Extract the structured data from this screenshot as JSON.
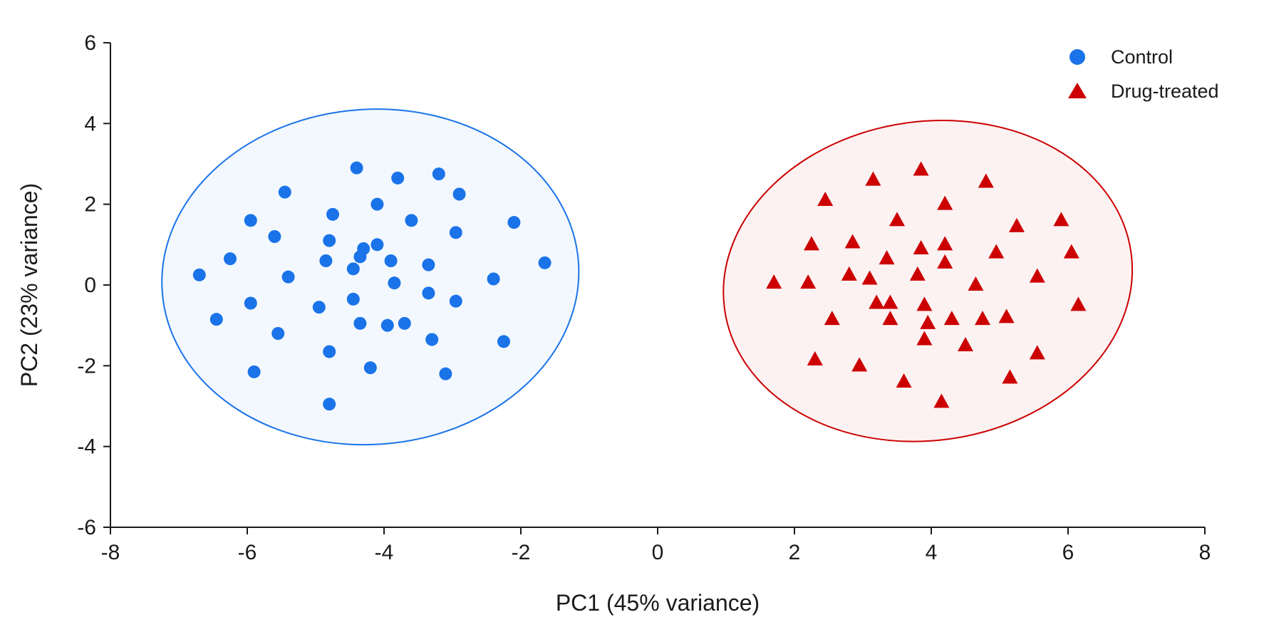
{
  "chart_data": {
    "type": "scatter",
    "xlabel": "PC1 (45% variance)",
    "ylabel": "PC2 (23% variance)",
    "xlim": [
      -8,
      8
    ],
    "ylim": [
      -6,
      6
    ],
    "xticks": [
      -8,
      -6,
      -4,
      -2,
      0,
      2,
      4,
      6,
      8
    ],
    "yticks": [
      -6,
      -4,
      -2,
      0,
      2,
      4,
      6
    ],
    "grid": false,
    "legend_position": "top-right",
    "series": [
      {
        "name": "Control",
        "marker": "circle",
        "color": "#1a73e8",
        "ellipse": {
          "cx": -4.2,
          "cy": 0.2,
          "rx": 3.05,
          "ry": 4.15,
          "tilt_deg": -4
        },
        "points": [
          [
            -4.4,
            2.9
          ],
          [
            -3.8,
            2.65
          ],
          [
            -3.2,
            2.75
          ],
          [
            -5.45,
            2.3
          ],
          [
            -2.9,
            2.25
          ],
          [
            -4.1,
            2.0
          ],
          [
            -4.75,
            1.75
          ],
          [
            -3.6,
            1.6
          ],
          [
            -5.95,
            1.6
          ],
          [
            -2.1,
            1.55
          ],
          [
            -2.95,
            1.3
          ],
          [
            -5.6,
            1.2
          ],
          [
            -4.8,
            1.1
          ],
          [
            -4.1,
            1.0
          ],
          [
            -4.3,
            0.9
          ],
          [
            -4.35,
            0.7
          ],
          [
            -6.25,
            0.65
          ],
          [
            -4.85,
            0.6
          ],
          [
            -3.9,
            0.6
          ],
          [
            -3.35,
            0.5
          ],
          [
            -1.65,
            0.55
          ],
          [
            -4.45,
            0.4
          ],
          [
            -6.7,
            0.25
          ],
          [
            -5.4,
            0.2
          ],
          [
            -2.4,
            0.15
          ],
          [
            -3.85,
            0.05
          ],
          [
            -3.35,
            -0.2
          ],
          [
            -4.45,
            -0.35
          ],
          [
            -2.95,
            -0.4
          ],
          [
            -5.95,
            -0.45
          ],
          [
            -4.95,
            -0.55
          ],
          [
            -6.45,
            -0.85
          ],
          [
            -3.7,
            -0.95
          ],
          [
            -4.35,
            -0.95
          ],
          [
            -3.95,
            -1.0
          ],
          [
            -5.55,
            -1.2
          ],
          [
            -3.3,
            -1.35
          ],
          [
            -2.25,
            -1.4
          ],
          [
            -4.8,
            -1.65
          ],
          [
            -4.2,
            -2.05
          ],
          [
            -5.9,
            -2.15
          ],
          [
            -3.1,
            -2.2
          ],
          [
            -4.8,
            -2.95
          ]
        ]
      },
      {
        "name": "Drug-treated",
        "marker": "triangle",
        "color": "#cc0000",
        "ellipse": {
          "cx": 3.95,
          "cy": 0.1,
          "rx": 3.0,
          "ry": 3.95,
          "tilt_deg": -8
        },
        "points": [
          [
            3.85,
            2.85
          ],
          [
            3.15,
            2.6
          ],
          [
            4.8,
            2.55
          ],
          [
            2.45,
            2.1
          ],
          [
            4.2,
            2.0
          ],
          [
            3.5,
            1.6
          ],
          [
            5.9,
            1.6
          ],
          [
            5.25,
            1.45
          ],
          [
            2.85,
            1.05
          ],
          [
            2.25,
            1.0
          ],
          [
            4.2,
            1.0
          ],
          [
            3.85,
            0.9
          ],
          [
            6.05,
            0.8
          ],
          [
            4.95,
            0.8
          ],
          [
            3.35,
            0.65
          ],
          [
            4.2,
            0.55
          ],
          [
            2.8,
            0.25
          ],
          [
            3.8,
            0.25
          ],
          [
            5.55,
            0.2
          ],
          [
            3.1,
            0.15
          ],
          [
            1.7,
            0.05
          ],
          [
            2.2,
            0.05
          ],
          [
            4.65,
            0.0
          ],
          [
            3.2,
            -0.45
          ],
          [
            3.4,
            -0.45
          ],
          [
            3.9,
            -0.5
          ],
          [
            6.15,
            -0.5
          ],
          [
            2.55,
            -0.85
          ],
          [
            3.4,
            -0.85
          ],
          [
            4.3,
            -0.85
          ],
          [
            4.75,
            -0.85
          ],
          [
            5.1,
            -0.8
          ],
          [
            3.95,
            -0.95
          ],
          [
            3.9,
            -1.35
          ],
          [
            4.5,
            -1.5
          ],
          [
            5.55,
            -1.7
          ],
          [
            2.3,
            -1.85
          ],
          [
            2.95,
            -2.0
          ],
          [
            5.15,
            -2.3
          ],
          [
            3.6,
            -2.4
          ],
          [
            4.15,
            -2.9
          ]
        ]
      }
    ]
  }
}
